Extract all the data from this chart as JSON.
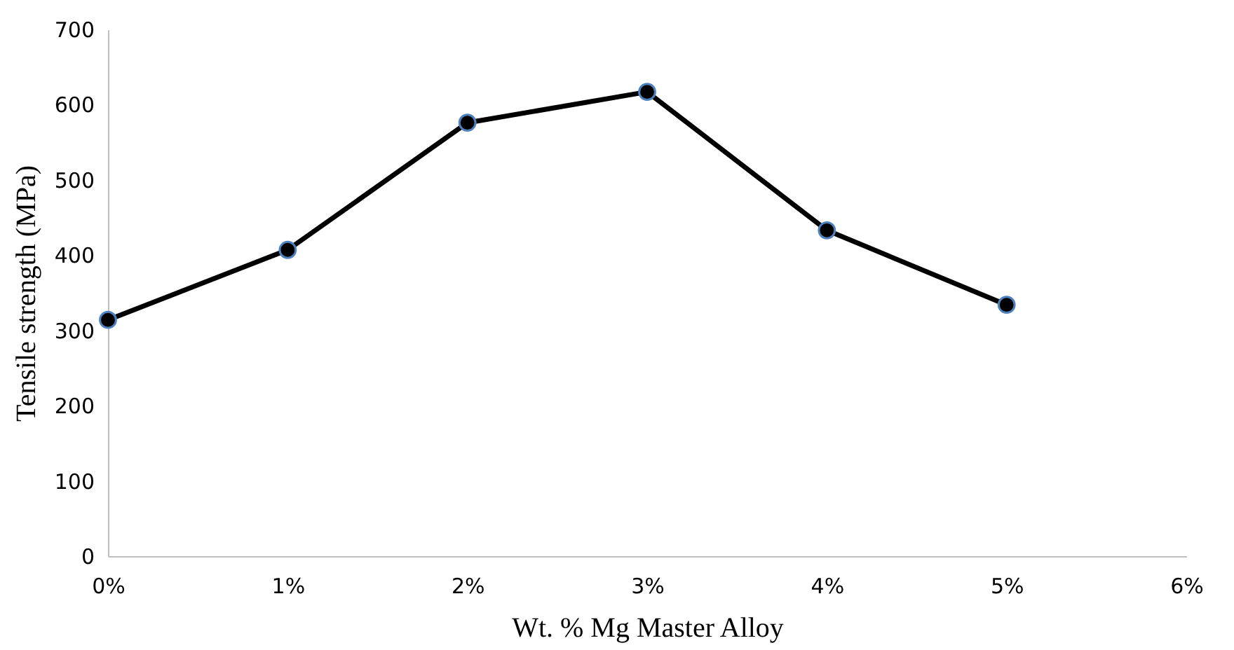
{
  "chart_data": {
    "type": "line",
    "xlabel": "Wt. % Mg Master Alloy",
    "ylabel": "Tensile strength (MPa)",
    "x": [
      0,
      1,
      2,
      3,
      4,
      5
    ],
    "series": [
      {
        "color": "#000000",
        "values": [
          314,
          407,
          576,
          617,
          433,
          334
        ]
      }
    ],
    "xlim": [
      0,
      6
    ],
    "xticks": [
      {
        "value": 0,
        "label": "0%"
      },
      {
        "value": 1,
        "label": "1%"
      },
      {
        "value": 2,
        "label": "2%"
      },
      {
        "value": 3,
        "label": "3%"
      },
      {
        "value": 4,
        "label": "4%"
      },
      {
        "value": 5,
        "label": "5%"
      },
      {
        "value": 6,
        "label": "6%"
      }
    ],
    "ylim": [
      0,
      700
    ],
    "yticks": [
      0,
      100,
      200,
      300,
      400,
      500,
      600,
      700
    ],
    "grid": false,
    "marker": "circle",
    "line_style": "solid"
  }
}
